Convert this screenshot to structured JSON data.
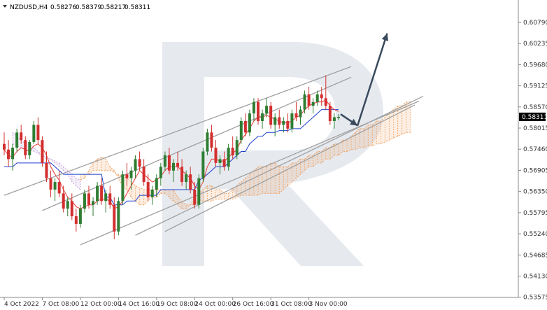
{
  "header": {
    "symbol": "NZDUSD,H4",
    "open": "0.58276",
    "high": "0.58379",
    "low": "0.58217",
    "close": "0.58311"
  },
  "chart_data": {
    "type": "candlestick",
    "symbol": "NZDUSD",
    "timeframe": "H4",
    "ylim": [
      0.5357,
      0.6101
    ],
    "y_ticks": [
      "0.60790",
      "0.60235",
      "0.59680",
      "0.59125",
      "0.58570",
      "0.58015",
      "0.57460",
      "0.56905",
      "0.56350",
      "0.55795",
      "0.55240",
      "0.54685",
      "0.54130",
      "0.53575"
    ],
    "x_ticks": [
      "4 Oct 2022",
      "7 Oct 08:00",
      "12 Oct 00:00",
      "14 Oct 16:00",
      "19 Oct 08:00",
      "24 Oct 00:00",
      "26 Oct 16:00",
      "31 Oct 08:00",
      "3 Nov 00:00"
    ],
    "current_price": "0.58311",
    "colors": {
      "bull": "#2e7d32",
      "bear": "#d32f2f",
      "tenkan": "#e53935",
      "kijun": "#1e40d0",
      "cloud": "#f0a060",
      "cloud_bear": "#c8a8e0",
      "channel": "#a0a0a0",
      "arrow": "#3a4a5c",
      "watermark": "#e6eaef"
    },
    "candles": [
      [
        0.576,
        0.579,
        0.573,
        0.5745
      ],
      [
        0.5745,
        0.577,
        0.57,
        0.572
      ],
      [
        0.572,
        0.576,
        0.569,
        0.575
      ],
      [
        0.575,
        0.58,
        0.574,
        0.579
      ],
      [
        0.579,
        0.581,
        0.576,
        0.577
      ],
      [
        0.577,
        0.578,
        0.572,
        0.573
      ],
      [
        0.573,
        0.577,
        0.572,
        0.5765
      ],
      [
        0.5765,
        0.582,
        0.576,
        0.581
      ],
      [
        0.581,
        0.583,
        0.576,
        0.577
      ],
      [
        0.577,
        0.578,
        0.57,
        0.571
      ],
      [
        0.571,
        0.574,
        0.566,
        0.567
      ],
      [
        0.567,
        0.569,
        0.562,
        0.564
      ],
      [
        0.564,
        0.567,
        0.561,
        0.566
      ],
      [
        0.566,
        0.569,
        0.562,
        0.563
      ],
      [
        0.563,
        0.565,
        0.558,
        0.559
      ],
      [
        0.559,
        0.562,
        0.557,
        0.561
      ],
      [
        0.561,
        0.563,
        0.556,
        0.557
      ],
      [
        0.557,
        0.559,
        0.553,
        0.555
      ],
      [
        0.555,
        0.56,
        0.554,
        0.559
      ],
      [
        0.559,
        0.564,
        0.558,
        0.563
      ],
      [
        0.563,
        0.565,
        0.559,
        0.56
      ],
      [
        0.56,
        0.562,
        0.557,
        0.561
      ],
      [
        0.561,
        0.566,
        0.56,
        0.565
      ],
      [
        0.565,
        0.567,
        0.56,
        0.561
      ],
      [
        0.561,
        0.564,
        0.558,
        0.563
      ],
      [
        0.563,
        0.565,
        0.559,
        0.56
      ],
      [
        0.56,
        0.562,
        0.551,
        0.553
      ],
      [
        0.553,
        0.562,
        0.552,
        0.561
      ],
      [
        0.561,
        0.569,
        0.56,
        0.568
      ],
      [
        0.568,
        0.571,
        0.565,
        0.567
      ],
      [
        0.567,
        0.57,
        0.564,
        0.569
      ],
      [
        0.569,
        0.573,
        0.567,
        0.572
      ],
      [
        0.572,
        0.574,
        0.569,
        0.57
      ],
      [
        0.57,
        0.572,
        0.565,
        0.566
      ],
      [
        0.566,
        0.568,
        0.561,
        0.562
      ],
      [
        0.562,
        0.565,
        0.56,
        0.564
      ],
      [
        0.564,
        0.568,
        0.562,
        0.567
      ],
      [
        0.567,
        0.571,
        0.565,
        0.57
      ],
      [
        0.57,
        0.574,
        0.569,
        0.573
      ],
      [
        0.573,
        0.575,
        0.568,
        0.569
      ],
      [
        0.569,
        0.572,
        0.566,
        0.571
      ],
      [
        0.571,
        0.574,
        0.569,
        0.57
      ],
      [
        0.57,
        0.572,
        0.565,
        0.566
      ],
      [
        0.566,
        0.569,
        0.564,
        0.568
      ],
      [
        0.568,
        0.57,
        0.563,
        0.564
      ],
      [
        0.564,
        0.566,
        0.559,
        0.56
      ],
      [
        0.56,
        0.568,
        0.559,
        0.567
      ],
      [
        0.567,
        0.575,
        0.566,
        0.574
      ],
      [
        0.574,
        0.58,
        0.573,
        0.579
      ],
      [
        0.579,
        0.581,
        0.574,
        0.575
      ],
      [
        0.575,
        0.577,
        0.57,
        0.571
      ],
      [
        0.571,
        0.573,
        0.568,
        0.572
      ],
      [
        0.572,
        0.574,
        0.569,
        0.57
      ],
      [
        0.57,
        0.576,
        0.569,
        0.575
      ],
      [
        0.575,
        0.578,
        0.572,
        0.573
      ],
      [
        0.573,
        0.578,
        0.572,
        0.577
      ],
      [
        0.577,
        0.583,
        0.576,
        0.582
      ],
      [
        0.582,
        0.584,
        0.578,
        0.579
      ],
      [
        0.579,
        0.585,
        0.578,
        0.584
      ],
      [
        0.584,
        0.588,
        0.582,
        0.587
      ],
      [
        0.587,
        0.588,
        0.581,
        0.582
      ],
      [
        0.582,
        0.585,
        0.58,
        0.584
      ],
      [
        0.584,
        0.588,
        0.583,
        0.586
      ],
      [
        0.586,
        0.587,
        0.58,
        0.581
      ],
      [
        0.581,
        0.584,
        0.578,
        0.583
      ],
      [
        0.583,
        0.585,
        0.58,
        0.581
      ],
      [
        0.581,
        0.583,
        0.579,
        0.582
      ],
      [
        0.582,
        0.584,
        0.579,
        0.58
      ],
      [
        0.58,
        0.585,
        0.579,
        0.584
      ],
      [
        0.584,
        0.587,
        0.582,
        0.583
      ],
      [
        0.583,
        0.586,
        0.581,
        0.585
      ],
      [
        0.585,
        0.59,
        0.584,
        0.589
      ],
      [
        0.589,
        0.591,
        0.585,
        0.586
      ],
      [
        0.586,
        0.588,
        0.584,
        0.587
      ],
      [
        0.587,
        0.59,
        0.586,
        0.589
      ],
      [
        0.589,
        0.591,
        0.586,
        0.588
      ],
      [
        0.588,
        0.594,
        0.585,
        0.586
      ],
      [
        0.586,
        0.587,
        0.581,
        0.582
      ],
      [
        0.582,
        0.584,
        0.58,
        0.583
      ],
      [
        0.5828,
        0.5838,
        0.5822,
        0.5831
      ]
    ],
    "x_tick_candles": [
      0,
      9,
      18,
      27,
      36,
      45,
      54,
      63,
      72
    ],
    "tenkan": [
      0.5745,
      0.573,
      0.5725,
      0.574,
      0.575,
      0.5745,
      0.574,
      0.5755,
      0.576,
      0.575,
      0.573,
      0.57,
      0.568,
      0.5665,
      0.564,
      0.562,
      0.561,
      0.5595,
      0.559,
      0.5595,
      0.56,
      0.56,
      0.561,
      0.5615,
      0.5615,
      0.561,
      0.559,
      0.5595,
      0.561,
      0.563,
      0.565,
      0.567,
      0.569,
      0.568,
      0.567,
      0.566,
      0.5665,
      0.5675,
      0.569,
      0.57,
      0.57,
      0.57,
      0.569,
      0.568,
      0.567,
      0.565,
      0.564,
      0.566,
      0.57,
      0.572,
      0.572,
      0.5715,
      0.5715,
      0.5725,
      0.5735,
      0.5745,
      0.577,
      0.5785,
      0.58,
      0.582,
      0.583,
      0.583,
      0.5835,
      0.583,
      0.5825,
      0.582,
      0.5815,
      0.5815,
      0.582,
      0.583,
      0.5835,
      0.585,
      0.586,
      0.5865,
      0.587,
      0.587,
      0.5875,
      0.586,
      0.585,
      0.5845
    ],
    "kijun": [
      0.57,
      0.57,
      0.57,
      0.571,
      0.571,
      0.571,
      0.571,
      0.571,
      0.571,
      0.571,
      0.571,
      0.571,
      0.57,
      0.569,
      0.568,
      0.568,
      0.568,
      0.568,
      0.568,
      0.568,
      0.568,
      0.568,
      0.568,
      0.568,
      0.562,
      0.562,
      0.56,
      0.56,
      0.56,
      0.561,
      0.561,
      0.561,
      0.5625,
      0.5625,
      0.5625,
      0.5625,
      0.5625,
      0.564,
      0.564,
      0.564,
      0.564,
      0.564,
      0.564,
      0.564,
      0.564,
      0.564,
      0.5665,
      0.567,
      0.568,
      0.569,
      0.57,
      0.57,
      0.57,
      0.571,
      0.572,
      0.573,
      0.574,
      0.574,
      0.576,
      0.577,
      0.578,
      0.578,
      0.579,
      0.579,
      0.579,
      0.5795,
      0.5795,
      0.5795,
      0.58,
      0.58,
      0.58,
      0.581,
      0.582,
      0.583,
      0.584,
      0.585,
      0.585,
      0.585,
      0.585,
      0.585
    ],
    "cloud_bear": {
      "from": 2,
      "to": 18,
      "a": [
        0.579,
        0.578,
        0.577,
        0.576,
        0.576,
        0.575,
        0.574,
        0.573,
        0.572,
        0.572,
        0.571,
        0.57,
        0.569,
        0.568,
        0.566,
        0.565,
        0.564
      ],
      "b": [
        0.576,
        0.5755,
        0.575,
        0.5745,
        0.5745,
        0.574,
        0.5735,
        0.573,
        0.5725,
        0.572,
        0.5715,
        0.571,
        0.57,
        0.569,
        0.568,
        0.567,
        0.5665
      ]
    },
    "cloud_bull": {
      "from": 18,
      "to": 96,
      "a": [
        0.5665,
        0.567,
        0.569,
        0.571,
        0.572,
        0.5725,
        0.572,
        0.57,
        0.569,
        0.567,
        0.565,
        0.564,
        0.562,
        0.561,
        0.56,
        0.56,
        0.561,
        0.562,
        0.562,
        0.563,
        0.563,
        0.562,
        0.561,
        0.56,
        0.559,
        0.559,
        0.56,
        0.562,
        0.563,
        0.564,
        0.565,
        0.565,
        0.564,
        0.564,
        0.563,
        0.563,
        0.564,
        0.565,
        0.566,
        0.567,
        0.568,
        0.569,
        0.57,
        0.57,
        0.57,
        0.571,
        0.571,
        0.57,
        0.57,
        0.57,
        0.571,
        0.571,
        0.572,
        0.572,
        0.573,
        0.573,
        0.574,
        0.574,
        0.575,
        0.575,
        0.576,
        0.576,
        0.577,
        0.577,
        0.578,
        0.579,
        0.58,
        0.58,
        0.581,
        0.581,
        0.582,
        0.582,
        0.583,
        0.584,
        0.585,
        0.586,
        0.586,
        0.587,
        0.587
      ],
      "b": [
        0.568,
        0.568,
        0.568,
        0.569,
        0.569,
        0.569,
        0.569,
        0.569,
        0.5685,
        0.568,
        0.5675,
        0.567,
        0.566,
        0.565,
        0.5645,
        0.564,
        0.564,
        0.564,
        0.564,
        0.564,
        0.564,
        0.564,
        0.564,
        0.562,
        0.561,
        0.56,
        0.56,
        0.56,
        0.561,
        0.561,
        0.561,
        0.561,
        0.5615,
        0.5615,
        0.5615,
        0.5615,
        0.5615,
        0.562,
        0.5625,
        0.5625,
        0.5625,
        0.5625,
        0.5625,
        0.563,
        0.563,
        0.563,
        0.563,
        0.563,
        0.564,
        0.565,
        0.566,
        0.567,
        0.568,
        0.569,
        0.57,
        0.57,
        0.571,
        0.571,
        0.572,
        0.572,
        0.573,
        0.573,
        0.574,
        0.574,
        0.5745,
        0.5745,
        0.575,
        0.575,
        0.5755,
        0.5755,
        0.576,
        0.576,
        0.5765,
        0.577,
        0.5775,
        0.578,
        0.5785,
        0.579,
        0.579
      ]
    },
    "channel_lines": [
      {
        "x1": 0,
        "y1": 0.5625,
        "x2": 82,
        "y2": 0.5963
      },
      {
        "x1": 9,
        "y1": 0.5585,
        "x2": 82,
        "y2": 0.5935
      },
      {
        "x1": 31,
        "y1": 0.552,
        "x2": 99,
        "y2": 0.5885
      },
      {
        "x1": 18,
        "y1": 0.5495,
        "x2": 98,
        "y2": 0.5872
      },
      {
        "x1": 38,
        "y1": 0.553,
        "x2": 97,
        "y2": 0.5862
      }
    ],
    "arrows": [
      {
        "from_x": 79.5,
        "from_y": 0.5838,
        "to_x": 83.5,
        "to_y": 0.5808
      },
      {
        "from_x": 83.5,
        "from_y": 0.5808,
        "to_x": 90.5,
        "to_y": 0.605
      }
    ]
  }
}
